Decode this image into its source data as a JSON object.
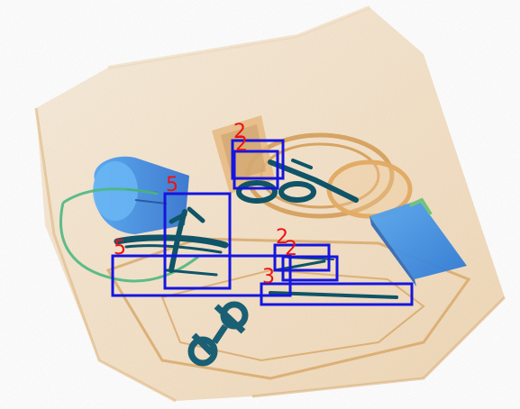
{
  "image": {
    "type": "x-ray baggage scan",
    "palette": {
      "organic": "#e9c08a",
      "organic_dark": "#c88a3c",
      "metal": "#1f6f8b",
      "metal_dark": "#0d4b5f",
      "plastic_blue": "#3a8ee6",
      "plastic_green": "#5bbf8a",
      "box_stroke": "#1515e0",
      "label_color": "#ee1111"
    }
  },
  "detections": [
    {
      "label": "2"
    },
    {
      "label": "2"
    },
    {
      "label": "5"
    },
    {
      "label": "5"
    },
    {
      "label": "2"
    },
    {
      "label": "2"
    },
    {
      "label": "3"
    }
  ]
}
